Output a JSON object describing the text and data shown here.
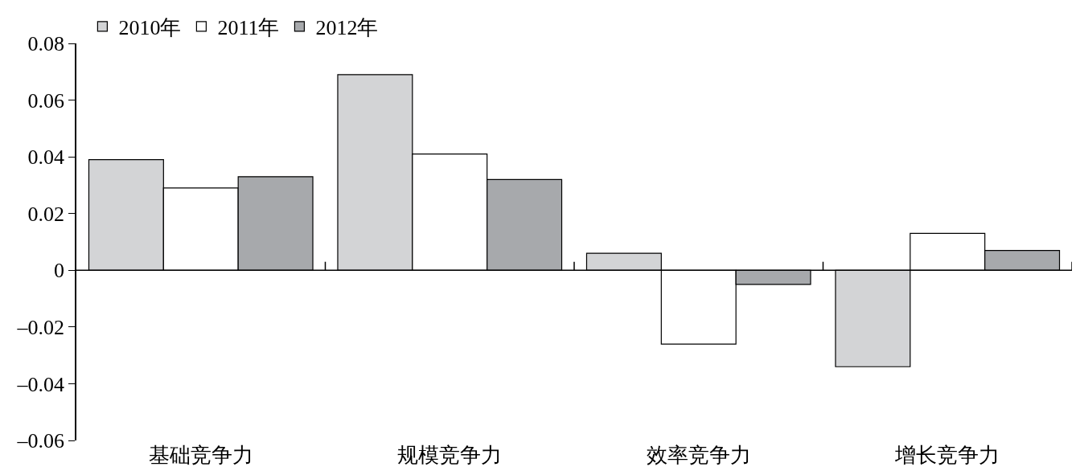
{
  "chart_data": {
    "type": "bar",
    "categories": [
      "基础竞争力",
      "规模竞争力",
      "效率竞争力",
      "增长竞争力"
    ],
    "series": [
      {
        "name": "2010年",
        "color": "#d3d4d6",
        "values": [
          0.039,
          0.069,
          0.006,
          -0.034
        ]
      },
      {
        "name": "2011年",
        "color": "#ffffff",
        "values": [
          0.029,
          0.041,
          -0.026,
          0.013
        ]
      },
      {
        "name": "2012年",
        "color": "#a7a9ac",
        "values": [
          0.033,
          0.032,
          -0.005,
          0.007
        ]
      }
    ],
    "ylim": [
      -0.06,
      0.08
    ],
    "yticks": [
      {
        "value": -0.06,
        "label": "–0.06"
      },
      {
        "value": -0.04,
        "label": "–0.04"
      },
      {
        "value": -0.02,
        "label": "–0.02"
      },
      0,
      0.02,
      0.04,
      0.06,
      0.08
    ],
    "legend": "top left"
  }
}
